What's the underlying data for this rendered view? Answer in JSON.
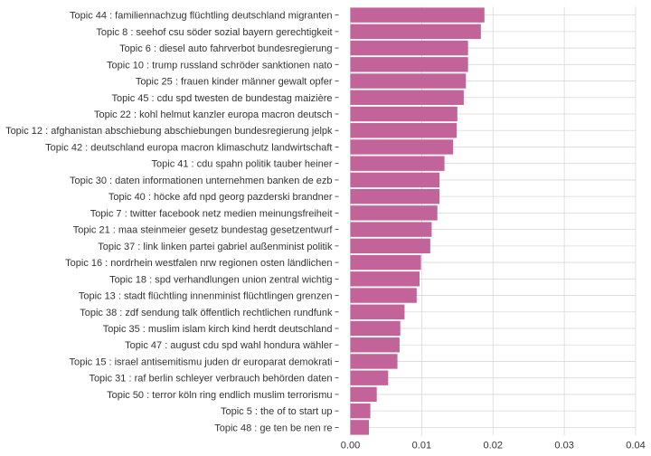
{
  "chart_data": {
    "type": "bar",
    "orientation": "horizontal",
    "bar_color": "#C2649A",
    "grid": true,
    "xlim": [
      0,
      0.04
    ],
    "x_ticks": [
      "0.00",
      "0.01",
      "0.02",
      "0.03",
      "0.04"
    ],
    "x_tick_values": [
      0,
      0.01,
      0.02,
      0.03,
      0.04
    ],
    "categories": [
      "Topic 44 : familiennachzug flüchtling deutschland migranten",
      "Topic 8 : seehof csu söder sozial bayern gerechtigkeit",
      "Topic 6 : diesel auto fahrverbot bundesregierung",
      "Topic 10 : trump russland schröder sanktionen nato",
      "Topic 25 : frauen kinder männer gewalt opfer",
      "Topic 45 : cdu spd twesten de bundestag maizière",
      "Topic 22 : kohl helmut kanzler europa macron deutsch",
      "Topic 12 : afghanistan abschiebung abschiebungen bundesregierung jelpk",
      "Topic 42 : deutschland europa macron klimaschutz landwirtschaft",
      "Topic 41 : cdu spahn politik tauber heiner",
      "Topic 30 : daten informationen unternehmen banken de ezb",
      "Topic 40 : höcke afd npd georg pazderski brandner",
      "Topic 7 : twitter facebook netz medien meinungsfreiheit",
      "Topic 21 : maa steinmeier gesetz bundestag gesetzentwurf",
      "Topic 37 : link linken partei gabriel außenminist politik",
      "Topic 16 : nordrhein westfalen nrw regionen osten ländlichen",
      "Topic 18 : spd verhandlungen union zentral wichtig",
      "Topic 13 : stadt flüchtling innenminist flüchtlingen grenzen",
      "Topic 38 : zdf sendung talk öffentlich rechtlichen rundfunk",
      "Topic 35 : muslim islam kirch kind herdt deutschland",
      "Topic 47 : august cdu spd wahl hondura wähler",
      "Topic 15 : israel antisemitismu juden dr europarat demokrati",
      "Topic 31 : raf berlin schleyer verbrauch behörden daten",
      "Topic 50 : terror köln ring endlich muslim terrorismu",
      "Topic 5 : the of to start up",
      "Topic 48 : ge ten be nen re"
    ],
    "values": [
      0.0188,
      0.0183,
      0.0165,
      0.0165,
      0.0162,
      0.0159,
      0.015,
      0.0149,
      0.0144,
      0.0132,
      0.0125,
      0.0125,
      0.0122,
      0.0114,
      0.0112,
      0.0099,
      0.0097,
      0.0093,
      0.0076,
      0.007,
      0.0069,
      0.0066,
      0.0053,
      0.0037,
      0.0028,
      0.0026
    ]
  }
}
